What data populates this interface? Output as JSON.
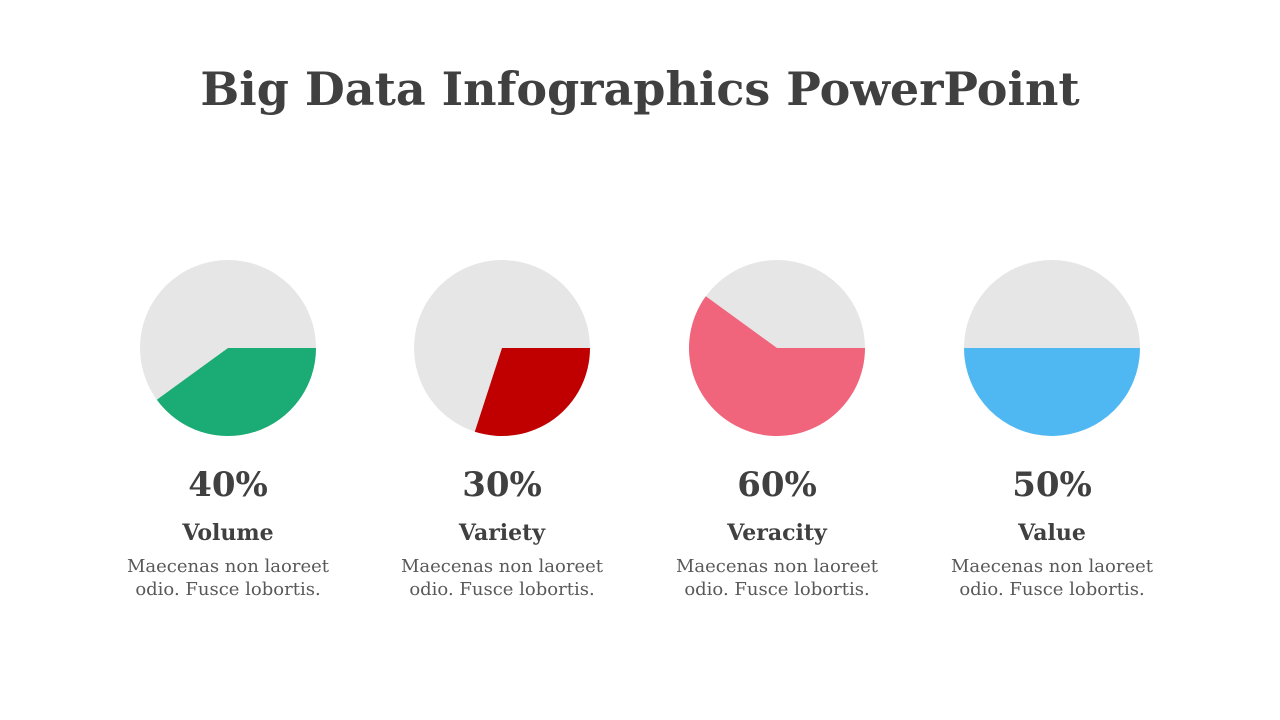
{
  "title": "Big Data Infographics PowerPoint",
  "chart_data": [
    {
      "type": "pie",
      "title": "Volume",
      "values": [
        40
      ],
      "value_labels": [
        "40%"
      ],
      "color": "#1bab74",
      "description": [
        "Maecenas non laoreet",
        "odio. Fusce lobortis."
      ]
    },
    {
      "type": "pie",
      "title": "Variety",
      "values": [
        30
      ],
      "value_labels": [
        "30%"
      ],
      "color": "#c00000",
      "description": [
        "Maecenas non laoreet",
        "odio. Fusce lobortis."
      ]
    },
    {
      "type": "pie",
      "title": "Veracity",
      "values": [
        60
      ],
      "value_labels": [
        "60%"
      ],
      "color": "#f0647c",
      "description": [
        "Maecenas non laoreet",
        "odio. Fusce lobortis."
      ]
    },
    {
      "type": "pie",
      "title": "Value",
      "values": [
        50
      ],
      "value_labels": [
        "50%"
      ],
      "color": "#4fb8f2",
      "description": [
        "Maecenas non laoreet",
        "odio. Fusce lobortis."
      ]
    }
  ]
}
